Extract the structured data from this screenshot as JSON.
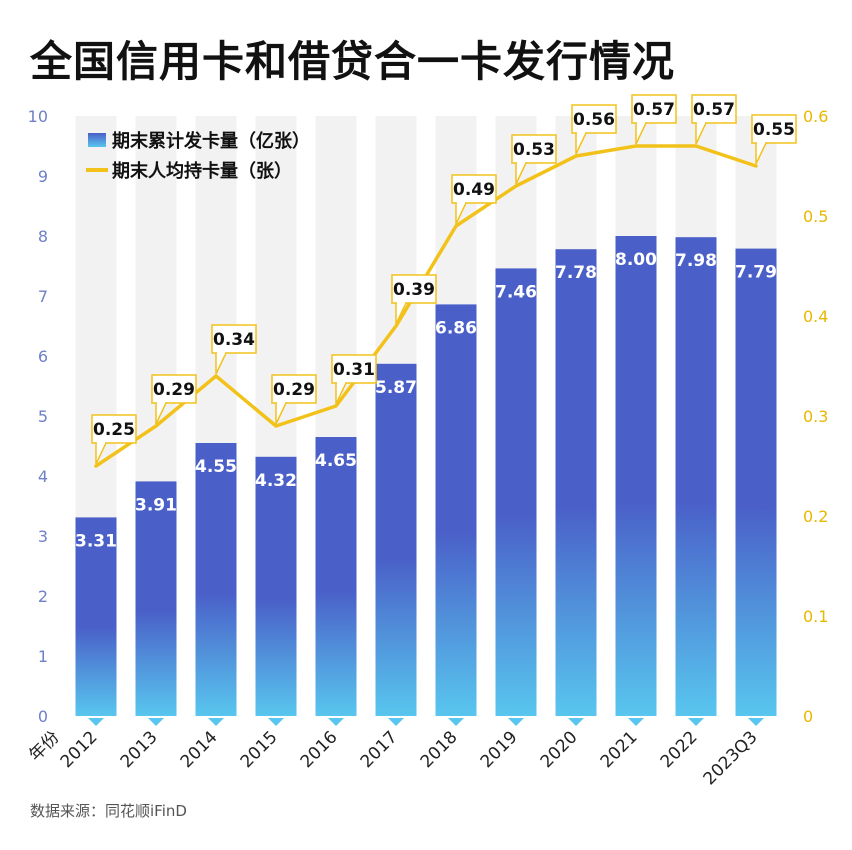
{
  "title": "全国信用卡和借贷合一卡发行情况",
  "source": "数据来源：同花顺iFinD",
  "colors": {
    "bar_top": "#4a5fc8",
    "bar_bottom": "#58c6ee",
    "line": "#f2c21b",
    "band": "#f2f2f2",
    "left_axis": "#6f80c8",
    "right_axis": "#e7b800"
  },
  "chart_data": {
    "type": "bar+line",
    "xlabel": "年份",
    "categories": [
      "2012",
      "2013",
      "2014",
      "2015",
      "2016",
      "2017",
      "2018",
      "2019",
      "2020",
      "2021",
      "2022",
      "2023Q3"
    ],
    "series": [
      {
        "name": "期末累计发卡量（亿张）",
        "type": "bar",
        "axis": "left",
        "values": [
          3.31,
          3.91,
          4.55,
          4.32,
          4.65,
          5.87,
          6.86,
          7.46,
          7.78,
          8.0,
          7.98,
          7.79
        ],
        "labels": [
          "3.31",
          "3.91",
          "4.55",
          "4.32",
          "4.65",
          "5.87",
          "6.86",
          "7.46",
          "7.78",
          "8.00",
          "7.98",
          "7.79"
        ]
      },
      {
        "name": "期末人均持卡量（张）",
        "type": "line",
        "axis": "right",
        "values": [
          0.25,
          0.29,
          0.34,
          0.29,
          0.31,
          0.39,
          0.49,
          0.53,
          0.56,
          0.57,
          0.57,
          0.55
        ],
        "labels": [
          "0.25",
          "0.29",
          "0.34",
          "0.29",
          "0.31",
          "0.39",
          "0.49",
          "0.53",
          "0.56",
          "0.57",
          "0.57",
          "0.55"
        ]
      }
    ],
    "left_axis": {
      "ylim": [
        0,
        10
      ],
      "ticks": [
        "0",
        "1",
        "2",
        "3",
        "4",
        "5",
        "6",
        "7",
        "8",
        "9",
        "10"
      ]
    },
    "right_axis": {
      "ylim": [
        0,
        0.6
      ],
      "ticks": [
        "0",
        "0.1",
        "0.2",
        "0.3",
        "0.4",
        "0.5",
        "0.6"
      ]
    },
    "legend_position": "top-left",
    "grid": false
  }
}
